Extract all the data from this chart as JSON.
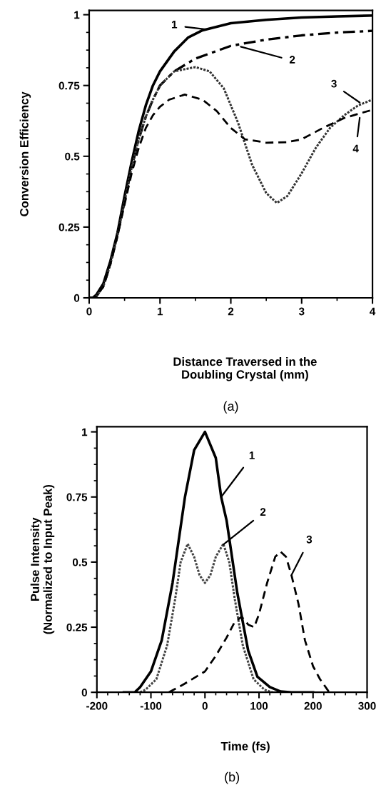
{
  "chart_data": [
    {
      "type": "line",
      "xlabel": "Distance Traversed in the\nDoubling Crystal (mm)",
      "ylabel": "Conversion Efficiency",
      "xlim": [
        0,
        4
      ],
      "ylim": [
        0,
        1.015
      ],
      "xticks": [
        0,
        1,
        2,
        3,
        4
      ],
      "yticks": [
        0,
        0.25,
        0.5,
        0.75,
        1
      ],
      "grid": false,
      "marker": "none",
      "annotations": [
        {
          "text": "1",
          "x": 1.65,
          "y": 0.948
        },
        {
          "text": "2",
          "x": 2.14,
          "y": 0.887
        },
        {
          "text": "3",
          "x": 3.82,
          "y": 0.69
        },
        {
          "text": "4",
          "x": 3.82,
          "y": 0.636
        },
        "(a)"
      ],
      "series": [
        {
          "color": "#000000",
          "line_style": "solid",
          "x": [
            0,
            0.05,
            0.1,
            0.2,
            0.3,
            0.4,
            0.5,
            0.6,
            0.7,
            0.8,
            0.9,
            1.0,
            1.2,
            1.4,
            1.6,
            2.0,
            2.5,
            3.0,
            3.5,
            4.0
          ],
          "values": [
            0,
            0,
            0.01,
            0.05,
            0.13,
            0.23,
            0.36,
            0.48,
            0.59,
            0.68,
            0.75,
            0.8,
            0.87,
            0.92,
            0.945,
            0.97,
            0.982,
            0.99,
            0.994,
            0.997
          ]
        },
        {
          "color": "#000000",
          "line_style": "dashdot",
          "x": [
            0,
            0.07,
            0.1,
            0.2,
            0.3,
            0.4,
            0.5,
            0.6,
            0.7,
            0.8,
            0.9,
            1.0,
            1.2,
            1.5,
            2.0,
            2.5,
            3.0,
            3.5,
            4.0
          ],
          "values": [
            0,
            0,
            0.005,
            0.04,
            0.12,
            0.22,
            0.34,
            0.46,
            0.56,
            0.64,
            0.7,
            0.75,
            0.8,
            0.845,
            0.89,
            0.912,
            0.927,
            0.937,
            0.943
          ]
        },
        {
          "color": "#333333",
          "line_style": "dotted",
          "x": [
            0,
            0.07,
            0.1,
            0.2,
            0.3,
            0.4,
            0.5,
            0.6,
            0.7,
            0.8,
            0.9,
            1.0,
            1.2,
            1.5,
            1.7,
            1.9,
            2.1,
            2.3,
            2.5,
            2.65,
            2.8,
            3.0,
            3.2,
            3.4,
            3.6,
            3.8,
            4.0
          ],
          "values": [
            0,
            0,
            0.005,
            0.04,
            0.12,
            0.22,
            0.34,
            0.46,
            0.56,
            0.64,
            0.7,
            0.75,
            0.8,
            0.815,
            0.8,
            0.74,
            0.62,
            0.47,
            0.37,
            0.335,
            0.36,
            0.44,
            0.53,
            0.6,
            0.645,
            0.68,
            0.7
          ]
        },
        {
          "color": "#000000",
          "line_style": "dashed",
          "x": [
            0,
            0.07,
            0.1,
            0.2,
            0.3,
            0.4,
            0.5,
            0.6,
            0.7,
            0.8,
            0.9,
            1.0,
            1.13,
            1.35,
            1.6,
            1.8,
            2.0,
            2.2,
            2.5,
            2.8,
            3.0,
            3.3,
            3.6,
            3.8,
            4.0
          ],
          "values": [
            0,
            0,
            0.005,
            0.04,
            0.12,
            0.22,
            0.33,
            0.44,
            0.53,
            0.6,
            0.645,
            0.675,
            0.7,
            0.718,
            0.7,
            0.66,
            0.6,
            0.56,
            0.548,
            0.55,
            0.56,
            0.6,
            0.635,
            0.65,
            0.664
          ]
        }
      ]
    },
    {
      "type": "line",
      "xlabel": "Time (fs)",
      "ylabel": "Pulse Intensity\n(Normalized to Input Peak)",
      "xlim": [
        -200,
        300
      ],
      "ylim": [
        0,
        1.02
      ],
      "xticks": [
        -200,
        -100,
        0,
        100,
        200,
        300
      ],
      "yticks": [
        0,
        0.25,
        0.5,
        0.75,
        1
      ],
      "grid": false,
      "marker": "none",
      "annotations": [
        {
          "text": "1",
          "x": 30,
          "y": 0.75
        },
        {
          "text": "2",
          "x": 34,
          "y": 0.567
        },
        {
          "text": "3",
          "x": 160,
          "y": 0.45
        },
        "(b)"
      ],
      "series": [
        {
          "color": "#000000",
          "line_style": "solid",
          "x": [
            -150,
            -130,
            -120,
            -100,
            -80,
            -60,
            -37,
            -20,
            0,
            20,
            30,
            40,
            60,
            80,
            97,
            120,
            140,
            160,
            200
          ],
          "values": [
            0,
            0,
            0.02,
            0.08,
            0.2,
            0.42,
            0.75,
            0.93,
            1.0,
            0.9,
            0.75,
            0.66,
            0.38,
            0.16,
            0.06,
            0.02,
            0.003,
            0,
            0
          ]
        },
        {
          "color": "#444444",
          "line_style": "dotted",
          "x": [
            -120,
            -110,
            -90,
            -70,
            -55,
            -45,
            -32,
            -20,
            -10,
            0,
            10,
            20,
            34,
            45,
            55,
            70,
            90,
            110,
            125
          ],
          "values": [
            0,
            0.01,
            0.05,
            0.18,
            0.36,
            0.5,
            0.57,
            0.52,
            0.45,
            0.42,
            0.45,
            0.52,
            0.57,
            0.5,
            0.36,
            0.18,
            0.05,
            0.01,
            0
          ]
        },
        {
          "color": "#000000",
          "line_style": "dashed",
          "x": [
            -67,
            -40,
            0,
            20,
            40,
            55,
            68,
            80,
            91,
            100,
            115,
            130,
            140,
            150,
            160,
            173,
            185,
            200,
            213,
            230
          ],
          "values": [
            0,
            0.03,
            0.08,
            0.14,
            0.21,
            0.27,
            0.29,
            0.26,
            0.25,
            0.3,
            0.42,
            0.52,
            0.54,
            0.52,
            0.45,
            0.34,
            0.2,
            0.1,
            0.05,
            0
          ]
        }
      ]
    }
  ]
}
